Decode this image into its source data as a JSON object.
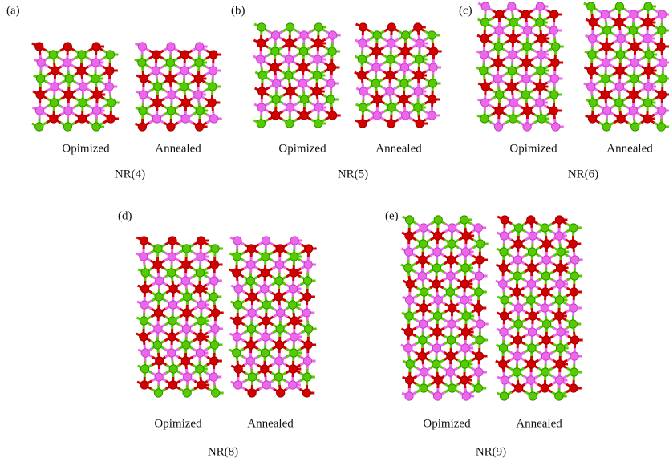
{
  "panels": [
    {
      "label": "(a)",
      "structures": [
        "Opimized",
        "Annealed"
      ],
      "name": "NR(4)"
    },
    {
      "label": "(b)",
      "structures": [
        "Opimized",
        "Annealed"
      ],
      "name": "NR(5)"
    },
    {
      "label": "(c)",
      "structures": [
        "Opimized",
        "Annealed"
      ],
      "name": "NR(6)"
    },
    {
      "label": "(d)",
      "structures": [
        "Opimized",
        "Annealed"
      ],
      "name": "NR(8)"
    },
    {
      "label": "(e)",
      "structures": [
        "Opimized",
        "Annealed"
      ],
      "name": "NR(9)"
    }
  ]
}
